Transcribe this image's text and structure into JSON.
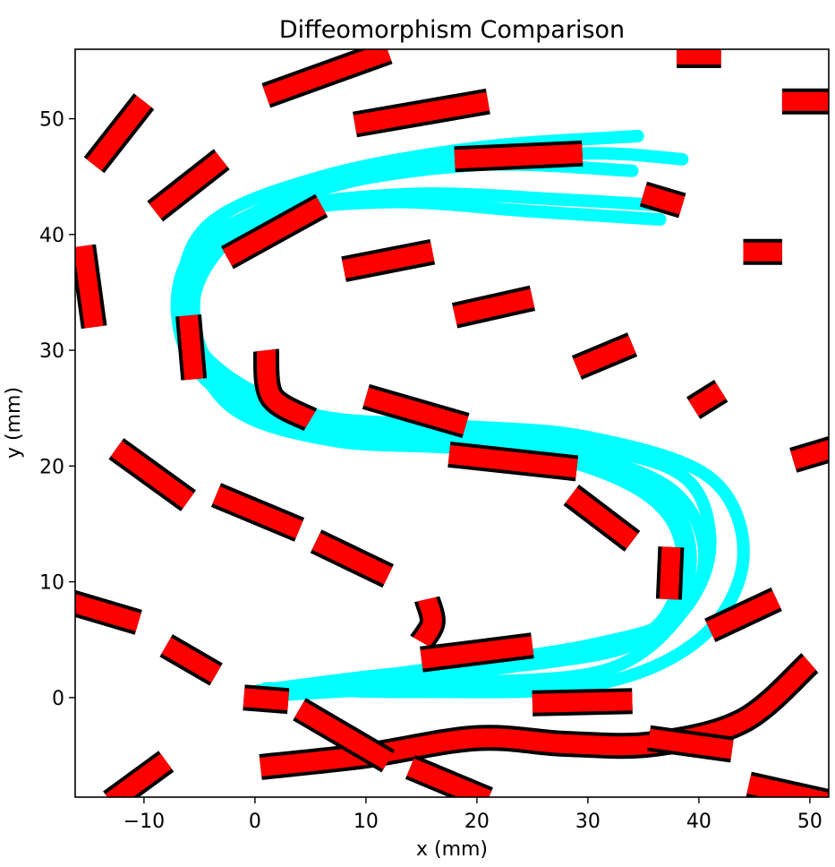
{
  "chart_data": {
    "type": "line",
    "title": "Diffeomorphism Comparison",
    "xlabel": "x (mm)",
    "ylabel": "y (mm)",
    "xlim": [
      -16.2,
      51.7
    ],
    "ylim": [
      -8.6,
      56.0
    ],
    "grid": false,
    "x_ticks": [
      {
        "value": -10,
        "label": "−10"
      },
      {
        "value": 0,
        "label": "0"
      },
      {
        "value": 10,
        "label": "10"
      },
      {
        "value": 20,
        "label": "20"
      },
      {
        "value": 30,
        "label": "30"
      },
      {
        "value": 40,
        "label": "40"
      },
      {
        "value": 50,
        "label": "50"
      }
    ],
    "y_ticks": [
      {
        "value": 0,
        "label": "0"
      },
      {
        "value": 10,
        "label": "10"
      },
      {
        "value": 20,
        "label": "20"
      },
      {
        "value": 30,
        "label": "30"
      },
      {
        "value": 40,
        "label": "40"
      },
      {
        "value": 50,
        "label": "50"
      }
    ],
    "colors": {
      "demonstrations": "#00ffff",
      "field_arrows": "#ff0000",
      "field_outline": "#000000"
    },
    "demonstrations": [
      [
        [
          0,
          0
        ],
        [
          14,
          1.5
        ],
        [
          28,
          3.5
        ],
        [
          36,
          6
        ],
        [
          38.5,
          12
        ],
        [
          36,
          17
        ],
        [
          28,
          20.5
        ],
        [
          16,
          22.5
        ],
        [
          4,
          24
        ],
        [
          -3.5,
          28
        ],
        [
          -5.5,
          34
        ],
        [
          -3,
          40
        ],
        [
          6,
          44
        ],
        [
          20,
          46
        ],
        [
          34,
          45.5
        ]
      ],
      [
        [
          0.5,
          0.5
        ],
        [
          16,
          2.5
        ],
        [
          30,
          4.5
        ],
        [
          38,
          7
        ],
        [
          40.5,
          12.5
        ],
        [
          37.5,
          18
        ],
        [
          29,
          21
        ],
        [
          17,
          22
        ],
        [
          6,
          23
        ],
        [
          -3,
          26
        ],
        [
          -6,
          33
        ],
        [
          -4.5,
          39
        ],
        [
          3,
          43
        ],
        [
          16,
          46
        ],
        [
          30,
          47
        ],
        [
          38.5,
          46.5
        ]
      ],
      [
        [
          1,
          0.8
        ],
        [
          14,
          0.5
        ],
        [
          30,
          1
        ],
        [
          40,
          5
        ],
        [
          44,
          12
        ],
        [
          41,
          19
        ],
        [
          30,
          22.5
        ],
        [
          18,
          23.5
        ],
        [
          5,
          24.5
        ],
        [
          -4,
          29
        ],
        [
          -6.5,
          35
        ],
        [
          -4,
          41
        ],
        [
          6,
          45
        ],
        [
          20,
          47.5
        ],
        [
          34.5,
          48.5
        ]
      ],
      [
        [
          2,
          0.2
        ],
        [
          18,
          1.2
        ],
        [
          32,
          2.5
        ],
        [
          39,
          8
        ],
        [
          41,
          14
        ],
        [
          38,
          19.5
        ],
        [
          27,
          22
        ],
        [
          14,
          22.8
        ],
        [
          3,
          23.5
        ],
        [
          -4.5,
          27.5
        ],
        [
          -7,
          33
        ],
        [
          -5.5,
          38.5
        ],
        [
          1,
          42
        ],
        [
          14,
          43.5
        ],
        [
          28,
          43
        ],
        [
          37,
          42.5
        ]
      ],
      [
        [
          0.3,
          0.6
        ],
        [
          12,
          2
        ],
        [
          26,
          3
        ],
        [
          35,
          5
        ],
        [
          39,
          10
        ],
        [
          38,
          16
        ],
        [
          31,
          20
        ],
        [
          19,
          21.5
        ],
        [
          7,
          22.2
        ],
        [
          -2,
          25
        ],
        [
          -5.5,
          31
        ],
        [
          -4.5,
          37
        ],
        [
          1,
          41.5
        ],
        [
          12,
          42.8
        ],
        [
          25,
          42
        ],
        [
          36.5,
          41.3
        ]
      ]
    ],
    "field_segments": [
      [
        [
          -13,
          -9
        ],
        [
          -8,
          -5.5
        ]
      ],
      [
        [
          0.5,
          -6
        ],
        [
          10,
          -5
        ],
        [
          20,
          -3.5
        ],
        [
          28,
          -4
        ],
        [
          36,
          -4
        ],
        [
          44,
          -2
        ],
        [
          50,
          3
        ]
      ],
      [
        [
          4,
          -1
        ],
        [
          12,
          -5.5
        ]
      ],
      [
        [
          14,
          -6
        ],
        [
          21,
          -8.8
        ]
      ],
      [
        [
          -16.5,
          8.2
        ],
        [
          -10.5,
          6.5
        ]
      ],
      [
        [
          -8,
          4.5
        ],
        [
          -3.5,
          2
        ]
      ],
      [
        [
          -1,
          0
        ],
        [
          3,
          -0.3
        ]
      ],
      [
        [
          25,
          -0.5
        ],
        [
          34,
          -0.3
        ]
      ],
      [
        [
          35.5,
          -3.5
        ],
        [
          43,
          -4.5
        ]
      ],
      [
        [
          44.5,
          -7.5
        ],
        [
          51.5,
          -9
        ]
      ],
      [
        [
          15.5,
          8.5
        ],
        [
          16,
          6.5
        ],
        [
          15,
          4.8
        ]
      ],
      [
        [
          15,
          3.3
        ],
        [
          25,
          4.5
        ]
      ],
      [
        [
          41,
          5.8
        ],
        [
          47,
          8.5
        ]
      ],
      [
        [
          -12.5,
          21.5
        ],
        [
          -6,
          17
        ]
      ],
      [
        [
          -3.5,
          17.5
        ],
        [
          4,
          14.5
        ]
      ],
      [
        [
          5.5,
          13.5
        ],
        [
          12,
          10.5
        ]
      ],
      [
        [
          17.5,
          21
        ],
        [
          29,
          19.8
        ]
      ],
      [
        [
          28.5,
          17.5
        ],
        [
          34,
          13.5
        ]
      ],
      [
        [
          37.5,
          13
        ],
        [
          37.3,
          8.5
        ]
      ],
      [
        [
          10,
          26
        ],
        [
          19,
          23.5
        ]
      ],
      [
        [
          1,
          30
        ],
        [
          1.5,
          26
        ],
        [
          5,
          24
        ]
      ],
      [
        [
          -6,
          33
        ],
        [
          -5.5,
          27.5
        ]
      ],
      [
        [
          -15.5,
          39
        ],
        [
          -14.5,
          32
        ]
      ],
      [
        [
          -14.5,
          46
        ],
        [
          -10,
          51.5
        ]
      ],
      [
        [
          -9,
          42
        ],
        [
          -3,
          46.5
        ]
      ],
      [
        [
          -2.5,
          38
        ],
        [
          6,
          42.5
        ]
      ],
      [
        [
          8,
          37
        ],
        [
          16,
          38.5
        ]
      ],
      [
        [
          18,
          33
        ],
        [
          25,
          34.5
        ]
      ],
      [
        [
          29,
          28.5
        ],
        [
          34,
          30.5
        ]
      ],
      [
        [
          39.5,
          25
        ],
        [
          42,
          26.5
        ]
      ],
      [
        [
          48.5,
          20.5
        ],
        [
          52,
          21.5
        ]
      ],
      [
        [
          18,
          46.5
        ],
        [
          29.5,
          47
        ]
      ],
      [
        [
          9,
          49.5
        ],
        [
          21,
          51.5
        ]
      ],
      [
        [
          1,
          52
        ],
        [
          12,
          55.8
        ]
      ],
      [
        [
          35,
          43.5
        ],
        [
          38.5,
          42.5
        ]
      ],
      [
        [
          44,
          38.5
        ],
        [
          47.5,
          38.5
        ]
      ],
      [
        [
          47.5,
          51.5
        ],
        [
          52,
          51.5
        ]
      ],
      [
        [
          38,
          55.5
        ],
        [
          42,
          55.5
        ]
      ]
    ]
  }
}
